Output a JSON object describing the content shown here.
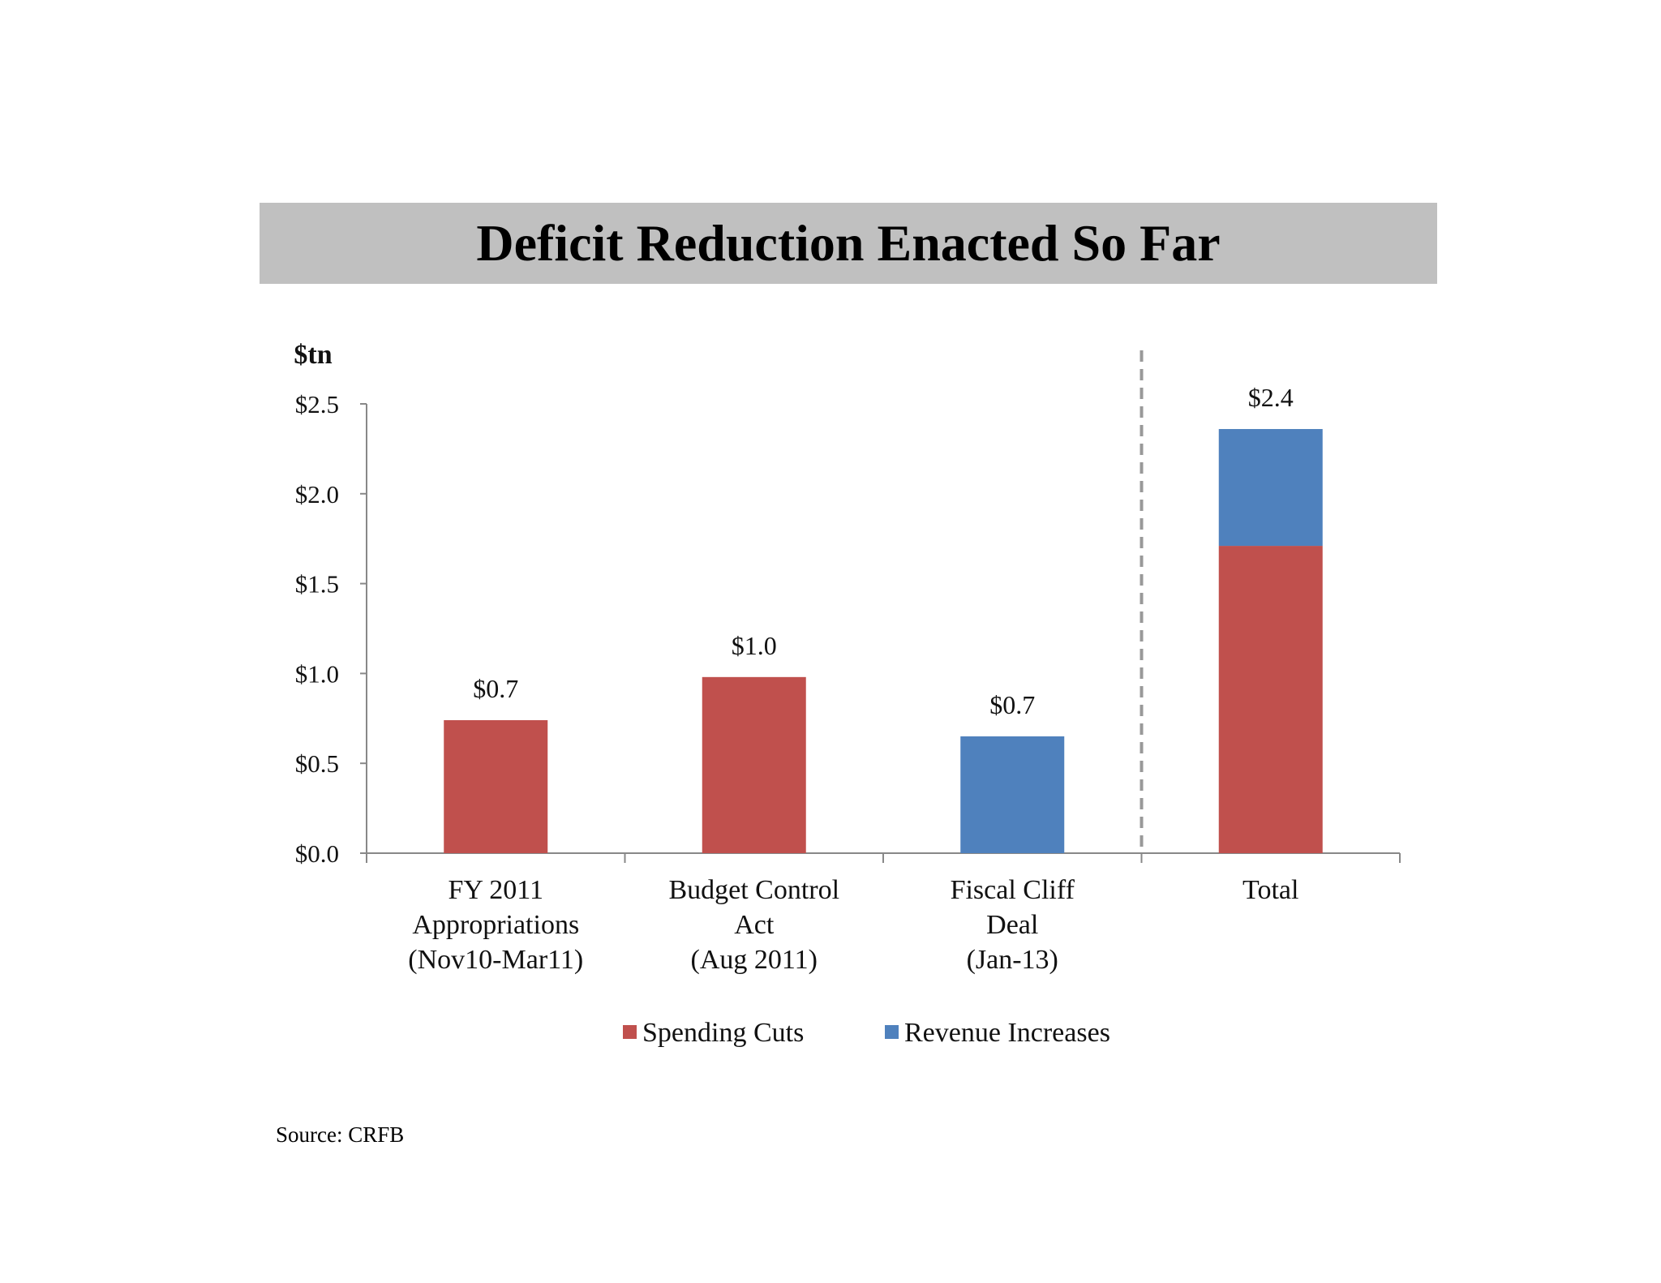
{
  "chart_data": {
    "type": "bar",
    "title": "Deficit Reduction Enacted So Far",
    "unit_label": "$tn",
    "categories": [
      [
        "FY 2011",
        "Appropriations",
        "(Nov10-Mar11)"
      ],
      [
        "Budget Control",
        "Act",
        "(Aug 2011)"
      ],
      [
        "Fiscal Cliff",
        "Deal",
        "(Jan-13)"
      ],
      [
        "Total"
      ]
    ],
    "series": [
      {
        "name": "Spending Cuts",
        "color": "#c0504d",
        "values": [
          0.74,
          0.98,
          0,
          1.71
        ]
      },
      {
        "name": "Revenue Increases",
        "color": "#4f81bd",
        "values": [
          0,
          0,
          0.65,
          0.65
        ]
      }
    ],
    "stacked": true,
    "data_labels": [
      "$0.7",
      "$1.0",
      "$0.7",
      "$2.4"
    ],
    "y_ticks": [
      "$0.0",
      "$0.5",
      "$1.0",
      "$1.5",
      "$2.0",
      "$2.5"
    ],
    "ylim": [
      0,
      2.5
    ],
    "divider_before_category": 3,
    "legend_position": "bottom"
  },
  "source": "Source: CRFB"
}
